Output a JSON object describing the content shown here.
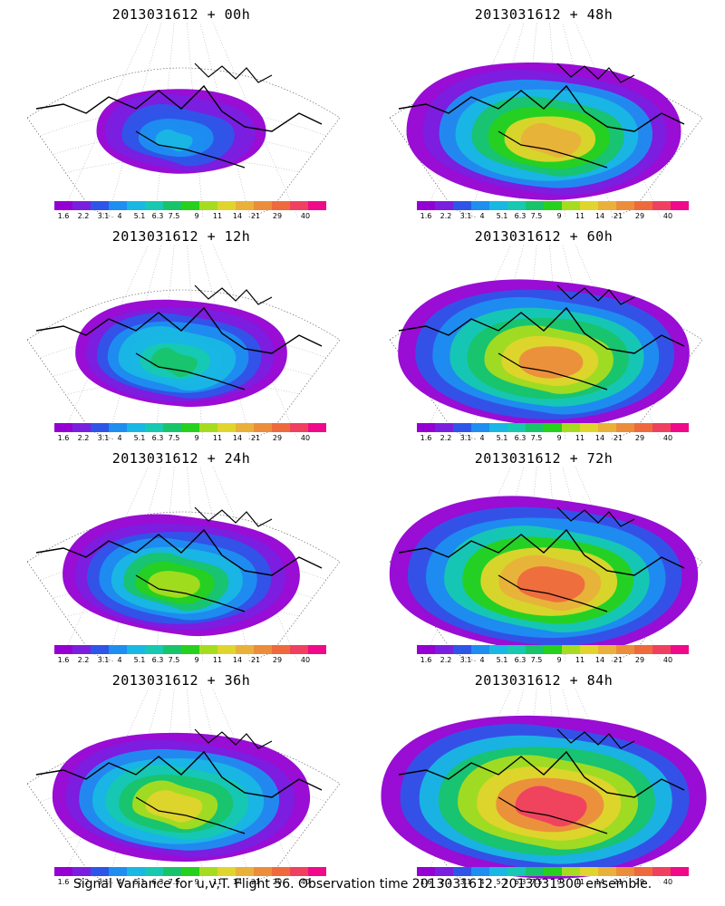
{
  "figure": {
    "caption": "Signal Variance for u,v,T. Flight 56. Observation time 2013031612. 2013031300 ensemble."
  },
  "colorbar": {
    "labels": [
      "1.6",
      "2.2",
      "3.1",
      "4",
      "5.1",
      "6.3",
      "7.5",
      "9",
      "11",
      "14",
      "21",
      "29",
      "40"
    ],
    "colors": [
      "#9400d3",
      "#7a1fe0",
      "#2e55e8",
      "#1e8ef0",
      "#19b7e3",
      "#16c9b0",
      "#18c46a",
      "#26d11e",
      "#a6dc1f",
      "#e0d52c",
      "#e9b13a",
      "#ec8d3c",
      "#ee6a3d",
      "#f04060",
      "#f00a8a"
    ]
  },
  "panels": [
    {
      "title": "2013031612 + 00h",
      "intensity": 0.0,
      "image": "signal-variance-map"
    },
    {
      "title": "2013031612 + 48h",
      "intensity": 0.62,
      "image": "signal-variance-map"
    },
    {
      "title": "2013031612 + 12h",
      "intensity": 0.25,
      "image": "signal-variance-map"
    },
    {
      "title": "2013031612 + 60h",
      "intensity": 0.72,
      "image": "signal-variance-map"
    },
    {
      "title": "2013031612 + 24h",
      "intensity": 0.4,
      "image": "signal-variance-map"
    },
    {
      "title": "2013031612 + 72h",
      "intensity": 0.82,
      "image": "signal-variance-map"
    },
    {
      "title": "2013031612 + 36h",
      "intensity": 0.52,
      "image": "signal-variance-map"
    },
    {
      "title": "2013031612 + 84h",
      "intensity": 0.92,
      "image": "signal-variance-map"
    }
  ]
}
